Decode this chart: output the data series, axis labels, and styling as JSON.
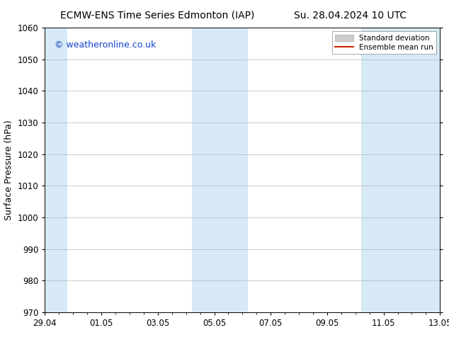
{
  "title_left": "ECMW-ENS Time Series Edmonton (IAP)",
  "title_right": "Su. 28.04.2024 10 UTC",
  "ylabel": "Surface Pressure (hPa)",
  "ylim": [
    970,
    1060
  ],
  "yticks": [
    970,
    980,
    990,
    1000,
    1010,
    1020,
    1030,
    1040,
    1050,
    1060
  ],
  "xtick_labels": [
    "29.04",
    "01.05",
    "03.05",
    "05.05",
    "07.05",
    "09.05",
    "11.05",
    "13.05"
  ],
  "xtick_positions": [
    0,
    2,
    4,
    6,
    8,
    10,
    12,
    14
  ],
  "xlim": [
    0,
    14
  ],
  "shaded_bands": [
    {
      "x_start": 0.0,
      "x_end": 0.8
    },
    {
      "x_start": 5.2,
      "x_end": 7.2
    },
    {
      "x_start": 11.2,
      "x_end": 14.0
    }
  ],
  "shade_color": "#d6e9f5",
  "background_color": "#ffffff",
  "grid_color": "#aaaaaa",
  "watermark_text": "© weatheronline.co.uk",
  "watermark_color": "#1144cc",
  "legend_std_label": "Standard deviation",
  "legend_mean_label": "Ensemble mean run",
  "legend_std_color": "#cccccc",
  "legend_mean_color": "#cc2200",
  "title_fontsize": 10,
  "label_fontsize": 9,
  "tick_fontsize": 8.5,
  "watermark_fontsize": 9
}
